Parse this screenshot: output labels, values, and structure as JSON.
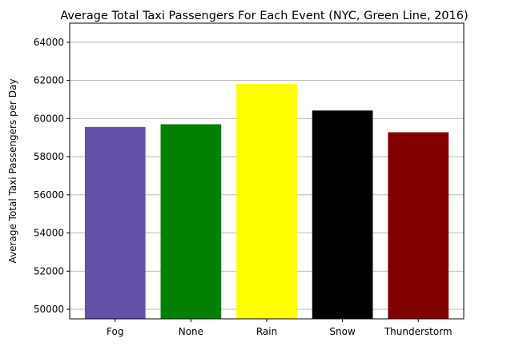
{
  "chart_data": {
    "type": "bar",
    "title": "Average Total Taxi Passengers For Each Event (NYC, Green Line, 2016)",
    "xlabel": "",
    "ylabel": "Average Total Taxi Passengers per Day",
    "categories": [
      "Fog",
      "None",
      "Rain",
      "Snow",
      "Thunderstorm"
    ],
    "values": [
      59560,
      59700,
      61820,
      60420,
      59280
    ],
    "colors": [
      "#6451a8",
      "#008000",
      "#ffff00",
      "#000000",
      "#800000"
    ],
    "ylim": [
      49500,
      65000
    ],
    "yticks": [
      50000,
      52000,
      54000,
      56000,
      58000,
      60000,
      62000,
      64000
    ],
    "ytick_labels": [
      "50000",
      "52000",
      "54000",
      "56000",
      "58000",
      "60000",
      "62000",
      "64000"
    ],
    "grid": {
      "y": true,
      "x": false,
      "color": "#b0b0b0"
    }
  }
}
